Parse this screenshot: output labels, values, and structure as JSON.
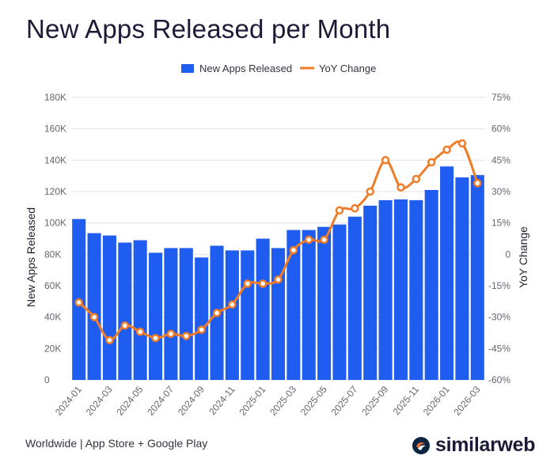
{
  "title": "New Apps Released per Month",
  "footer": "Worldwide | App Store + Google Play",
  "brand": {
    "name": "similarweb",
    "logo_icon": "similarweb-logo-icon",
    "logo_color": "#092540",
    "logo_accent": "#ff6d3b"
  },
  "chart_data": {
    "type": "bar",
    "x": [
      "2024-01",
      "2024-02",
      "2024-03",
      "2024-04",
      "2024-05",
      "2024-06",
      "2024-07",
      "2024-08",
      "2024-09",
      "2024-10",
      "2024-11",
      "2024-12",
      "2025-01",
      "2025-02",
      "2025-03",
      "2025-04",
      "2025-05",
      "2025-06",
      "2025-07",
      "2025-08",
      "2025-09",
      "2025-10",
      "2025-11",
      "2025-12",
      "2026-01",
      "2026-02",
      "2026-03"
    ],
    "x_tick_labels": [
      "2024-01",
      "2024-03",
      "2024-05",
      "2024-07",
      "2024-09",
      "2024-11",
      "2025-01",
      "2025-03",
      "2025-05",
      "2025-07",
      "2025-09",
      "2025-11",
      "2026-01",
      "2026-03"
    ],
    "series": [
      {
        "name": "New Apps Released",
        "type": "bar",
        "axis": "left",
        "color": "#1f5cf0",
        "values": [
          102500,
          93500,
          92000,
          87500,
          89000,
          81000,
          84000,
          84000,
          78000,
          85500,
          82500,
          82500,
          90000,
          84000,
          95500,
          95500,
          97500,
          99000,
          104000,
          111000,
          114500,
          115000,
          114500,
          121000,
          136000,
          129000,
          130500
        ]
      },
      {
        "name": "YoY Change",
        "type": "line",
        "axis": "right",
        "color": "#f07c28",
        "values": [
          -23,
          -30,
          -41,
          -34,
          -37,
          -40,
          -38,
          -39,
          -36,
          -28,
          -24,
          -14,
          -14,
          -12,
          2,
          7,
          7,
          21,
          22,
          30,
          45,
          32,
          36,
          44,
          50,
          53,
          34
        ]
      }
    ],
    "ylabel": "New Apps Released",
    "y2label": "YoY Change",
    "ylim": [
      0,
      180000
    ],
    "y2lim": [
      -60,
      75
    ],
    "yticks": [
      "0",
      "20K",
      "40K",
      "60K",
      "80K",
      "100K",
      "120K",
      "140K",
      "160K",
      "180K"
    ],
    "y2ticks": [
      "-60%",
      "-45%",
      "-30%",
      "-15%",
      "0",
      "15%",
      "30%",
      "45%",
      "60%",
      "75%"
    ],
    "legend_position": "top-center",
    "grid": true
  }
}
